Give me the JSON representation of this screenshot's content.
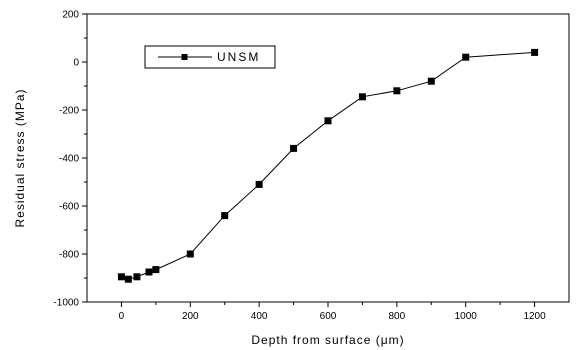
{
  "chart_data": {
    "type": "line",
    "xlabel": "Depth from surface (μm)",
    "ylabel": "Residual stress (MPa)",
    "xlim": [
      -100,
      1300
    ],
    "ylim": [
      -1000,
      200
    ],
    "x_ticks": [
      0,
      200,
      400,
      600,
      800,
      1000,
      1200
    ],
    "y_ticks": [
      200,
      0,
      -200,
      -400,
      -600,
      -800,
      -1000
    ],
    "x_tick_labels": [
      "0",
      "200",
      "400",
      "600",
      "800",
      "1000",
      "1200"
    ],
    "y_tick_labels": [
      "200",
      "0",
      "-200",
      "-400",
      "-600",
      "-800",
      "-1000"
    ],
    "legend_position": "top-left",
    "grid": false,
    "series": [
      {
        "name": "UNSM",
        "marker": "square",
        "color": "#000000",
        "x": [
          0,
          20,
          45,
          80,
          100,
          200,
          300,
          400,
          500,
          600,
          700,
          800,
          900,
          1000,
          1200
        ],
        "y": [
          -895,
          -905,
          -895,
          -875,
          -865,
          -800,
          -640,
          -510,
          -360,
          -245,
          -145,
          -120,
          -80,
          20,
          40
        ]
      }
    ]
  }
}
